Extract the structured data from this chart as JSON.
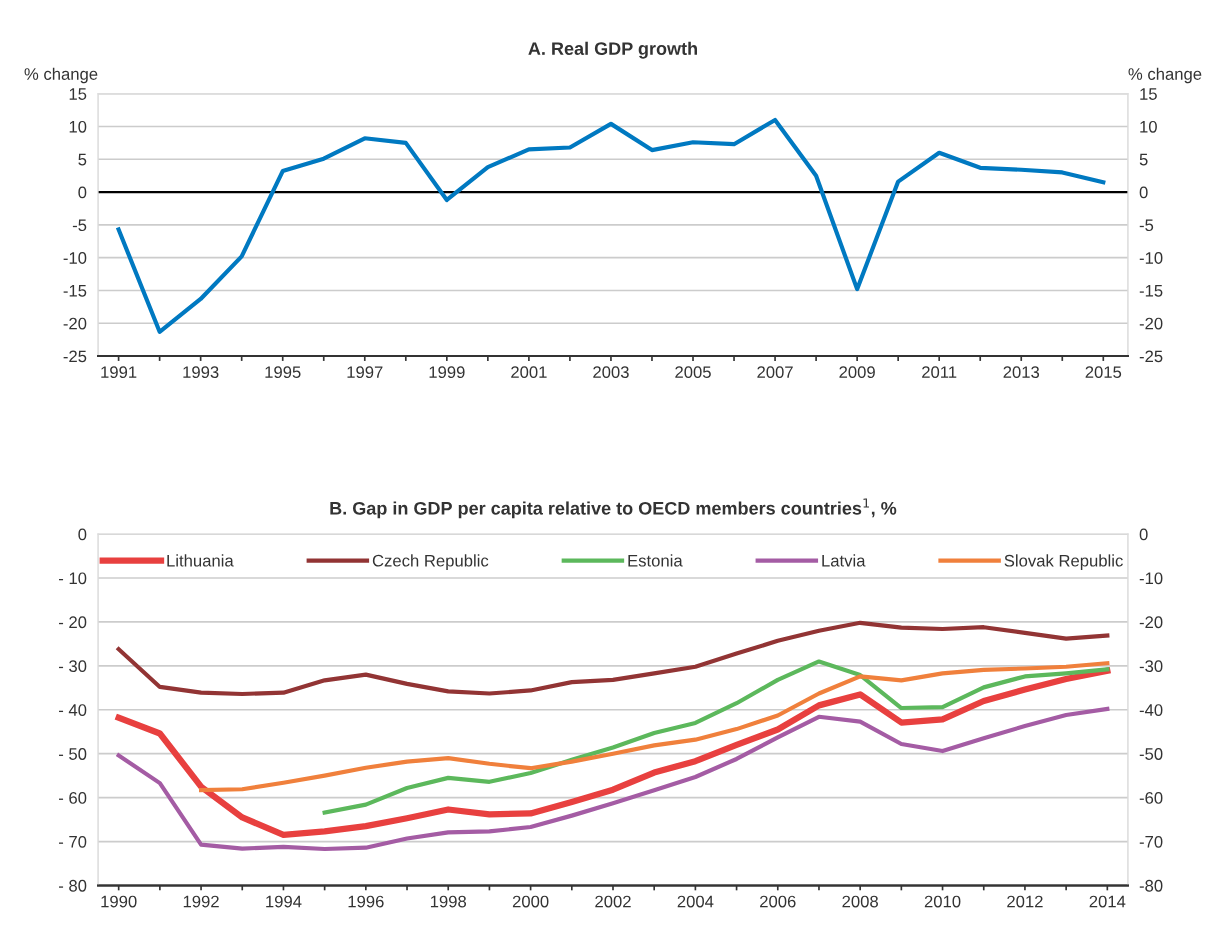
{
  "chart_data": [
    {
      "type": "line",
      "title": "A. Real GDP growth",
      "ylabel": "% change",
      "y2label": "% change",
      "x": [
        1991,
        1992,
        1993,
        1994,
        1995,
        1996,
        1997,
        1998,
        1999,
        2000,
        2001,
        2002,
        2003,
        2004,
        2005,
        2006,
        2007,
        2008,
        2009,
        2010,
        2011,
        2012,
        2013,
        2014,
        2015
      ],
      "series": [
        {
          "color": "#0079c1",
          "values": [
            -5.7,
            -21.3,
            -16.3,
            -9.8,
            3.2,
            5.1,
            8.2,
            7.5,
            -1.2,
            3.8,
            6.5,
            6.8,
            10.4,
            6.4,
            7.6,
            7.3,
            11.0,
            2.5,
            -14.8,
            1.6,
            6.0,
            3.7,
            3.4,
            3.0,
            1.5
          ]
        }
      ],
      "xlim": [
        1990.5,
        2015.6
      ],
      "xticks": [
        1991,
        {
          "value": 1992,
          "label": null
        },
        1993,
        {
          "value": 1994,
          "label": null
        },
        1995,
        {
          "value": 1996,
          "label": null
        },
        1997,
        {
          "value": 1998,
          "label": null
        },
        1999,
        {
          "value": 2000,
          "label": null
        },
        2001,
        {
          "value": 2002,
          "label": null
        },
        2003,
        {
          "value": 2004,
          "label": null
        },
        2005,
        {
          "value": 2006,
          "label": null
        },
        2007,
        {
          "value": 2008,
          "label": null
        },
        2009,
        {
          "value": 2010,
          "label": null
        },
        2011,
        {
          "value": 2012,
          "label": null
        },
        2013,
        {
          "value": 2014,
          "label": null
        },
        2015
      ],
      "ylim": [
        -25,
        15
      ],
      "yticks": [
        -25,
        -20,
        -15,
        -10,
        -5,
        0,
        5,
        10,
        15
      ],
      "y2lim": [
        -25,
        15
      ],
      "y2ticks": [
        -25,
        -20,
        -15,
        -10,
        -5,
        0,
        5,
        10,
        15
      ],
      "ref_lines": [
        {
          "axis": "y",
          "value": 0,
          "color": "#000000"
        }
      ],
      "grid": "y",
      "legend": false,
      "marker": "none",
      "line_style": "solid"
    },
    {
      "type": "line",
      "title": "B. Gap in GDP per capita relative to OECD members countries$^{1}$, %",
      "x": [
        1990,
        1991,
        1992,
        1993,
        1994,
        1995,
        1996,
        1997,
        1998,
        1999,
        2000,
        2001,
        2002,
        2003,
        2004,
        2005,
        2006,
        2007,
        2008,
        2009,
        2010,
        2011,
        2012,
        2013,
        2014
      ],
      "series": [
        {
          "name": "Lithuania",
          "color": "#e8403f",
          "values": [
            -41.8,
            -45.4,
            -57.5,
            -64.5,
            -68.5,
            -67.7,
            -66.5,
            -64.7,
            -62.7,
            -63.8,
            -63.6,
            -61.0,
            -58.2,
            -54.3,
            -51.7,
            -48.0,
            -44.5,
            -39.0,
            -36.5,
            -42.9,
            -42.2,
            -38.0,
            -35.4,
            -33.0,
            -31.1
          ]
        },
        {
          "name": "Czech Republic",
          "color": "#923434",
          "values": [
            -26.2,
            -34.8,
            -36.1,
            -36.4,
            -36.1,
            -33.3,
            -32.0,
            -34.1,
            -35.8,
            -36.3,
            -35.6,
            -33.7,
            -33.2,
            -31.7,
            -30.2,
            -27.2,
            -24.3,
            -22.0,
            -20.2,
            -21.3,
            -21.6,
            -21.2,
            -22.5,
            -23.8,
            -23.1
          ]
        },
        {
          "name": "Estonia",
          "color": "#5cb85c",
          "values": [
            null,
            null,
            null,
            null,
            null,
            -63.4,
            -61.6,
            -57.8,
            -55.5,
            -56.4,
            -54.4,
            -51.4,
            -48.6,
            -45.3,
            -43.0,
            -38.5,
            -33.2,
            -29.0,
            -32.1,
            -39.6,
            -39.4,
            -34.9,
            -32.4,
            -31.7,
            -30.8
          ]
        },
        {
          "name": "Latvia",
          "color": "#a45ca4",
          "values": [
            -50.4,
            -56.7,
            -70.7,
            -71.6,
            -71.2,
            -71.7,
            -71.4,
            -69.3,
            -67.9,
            -67.7,
            -66.7,
            -64.1,
            -61.3,
            -58.3,
            -55.3,
            -51.2,
            -46.3,
            -41.6,
            -42.7,
            -47.8,
            -49.4,
            -46.5,
            -43.7,
            -41.2,
            -39.8
          ]
        },
        {
          "name": "Slovak Republic",
          "color": "#f0803c",
          "values": [
            null,
            null,
            -58.3,
            -58.1,
            -56.6,
            -55.0,
            -53.2,
            -51.8,
            -51.0,
            -52.3,
            -53.3,
            -51.8,
            -50.0,
            -48.1,
            -46.8,
            -44.4,
            -41.3,
            -36.3,
            -32.4,
            -33.3,
            -31.7,
            -30.9,
            -30.6,
            -30.2,
            -29.4
          ]
        }
      ],
      "xlim": [
        1989.5,
        2014.5
      ],
      "xticks": [
        1990,
        {
          "value": 1991,
          "label": null
        },
        1992,
        {
          "value": 1993,
          "label": null
        },
        1994,
        {
          "value": 1995,
          "label": null
        },
        1996,
        {
          "value": 1997,
          "label": null
        },
        1998,
        {
          "value": 1999,
          "label": null
        },
        2000,
        {
          "value": 2001,
          "label": null
        },
        2002,
        {
          "value": 2003,
          "label": null
        },
        2004,
        {
          "value": 2005,
          "label": null
        },
        2006,
        {
          "value": 2007,
          "label": null
        },
        2008,
        {
          "value": 2009,
          "label": null
        },
        2010,
        {
          "value": 2011,
          "label": null
        },
        2012,
        {
          "value": 2013,
          "label": null
        },
        2014
      ],
      "ylim": [
        -80,
        0
      ],
      "yticks": [
        {
          "value": -80,
          "label": "- 80"
        },
        {
          "value": -70,
          "label": "- 70"
        },
        {
          "value": -60,
          "label": "- 60"
        },
        {
          "value": -50,
          "label": "- 50"
        },
        {
          "value": -40,
          "label": "- 40"
        },
        {
          "value": -30,
          "label": "- 30"
        },
        {
          "value": -20,
          "label": "- 20"
        },
        {
          "value": -10,
          "label": "- 10"
        },
        0
      ],
      "y2lim": [
        -80,
        0
      ],
      "y2ticks": [
        -80,
        -70,
        -60,
        -50,
        -40,
        -30,
        -20,
        -10,
        0
      ],
      "grid": "y",
      "legend": "top",
      "marker": "none",
      "line_style": "solid"
    }
  ]
}
